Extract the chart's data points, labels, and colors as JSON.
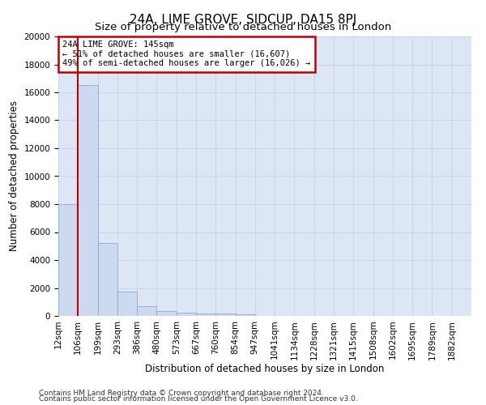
{
  "title": "24A, LIME GROVE, SIDCUP, DA15 8PJ",
  "subtitle": "Size of property relative to detached houses in London",
  "xlabel": "Distribution of detached houses by size in London",
  "ylabel": "Number of detached properties",
  "categories": [
    "12sqm",
    "106sqm",
    "199sqm",
    "293sqm",
    "386sqm",
    "480sqm",
    "573sqm",
    "667sqm",
    "760sqm",
    "854sqm",
    "947sqm",
    "1041sqm",
    "1134sqm",
    "1228sqm",
    "1321sqm",
    "1415sqm",
    "1508sqm",
    "1602sqm",
    "1695sqm",
    "1789sqm",
    "1882sqm"
  ],
  "values": [
    8000,
    16500,
    5200,
    1750,
    700,
    350,
    250,
    200,
    180,
    130,
    0,
    0,
    0,
    0,
    0,
    0,
    0,
    0,
    0,
    0,
    0
  ],
  "bar_color": "#ccd9ee",
  "bar_edge_color": "#8aaad4",
  "vline_color": "#c00000",
  "annotation_text": "24A LIME GROVE: 145sqm\n← 51% of detached houses are smaller (16,607)\n49% of semi-detached houses are larger (16,026) →",
  "annotation_box_color": "#ffffff",
  "annotation_box_edge": "#c00000",
  "ylim": [
    0,
    20000
  ],
  "yticks": [
    0,
    2000,
    4000,
    6000,
    8000,
    10000,
    12000,
    14000,
    16000,
    18000,
    20000
  ],
  "grid_color": "#c8d4e8",
  "background_color": "#dce6f5",
  "footer_line1": "Contains HM Land Registry data © Crown copyright and database right 2024.",
  "footer_line2": "Contains public sector information licensed under the Open Government Licence v3.0.",
  "title_fontsize": 11,
  "subtitle_fontsize": 9.5,
  "axis_label_fontsize": 8.5,
  "tick_fontsize": 7.5,
  "footer_fontsize": 6.5
}
